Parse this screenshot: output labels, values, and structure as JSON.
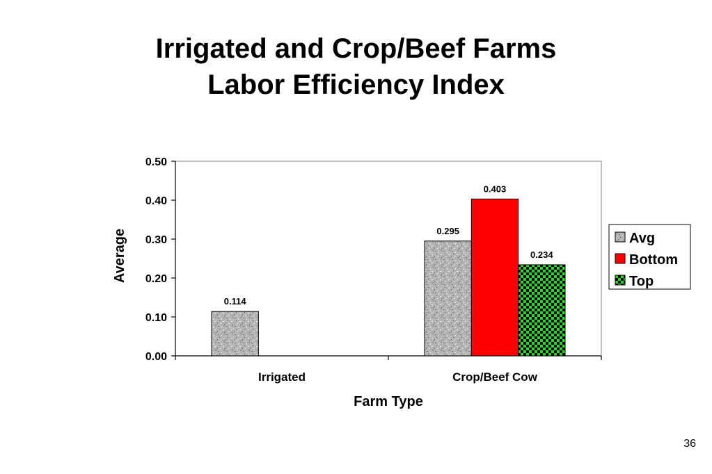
{
  "slide": {
    "title_line1": "Irrigated and Crop/Beef Farms",
    "title_line2": "Labor Efficiency Index",
    "page_number": "36"
  },
  "chart_data": {
    "type": "bar",
    "title": "",
    "xlabel": "Farm Type",
    "ylabel": "Average",
    "ylim": [
      0,
      0.5
    ],
    "yticks": [
      "0.00",
      "0.10",
      "0.20",
      "0.30",
      "0.40",
      "0.50"
    ],
    "categories": [
      "Irrigated",
      "Crop/Beef Cow"
    ],
    "series": [
      {
        "name": "Avg",
        "values": [
          0.114,
          0.295
        ],
        "labels": [
          "0.114",
          "0.295"
        ],
        "pattern": "granite",
        "color": "#b0b0b0"
      },
      {
        "name": "Bottom",
        "values": [
          null,
          0.403
        ],
        "labels": [
          "",
          "0.403"
        ],
        "pattern": "solid",
        "color": "#ff0000"
      },
      {
        "name": "Top",
        "values": [
          null,
          0.234
        ],
        "labels": [
          "",
          "0.234"
        ],
        "pattern": "checker",
        "color": "#00cc00"
      }
    ],
    "grid": false,
    "legend_position": "right"
  }
}
